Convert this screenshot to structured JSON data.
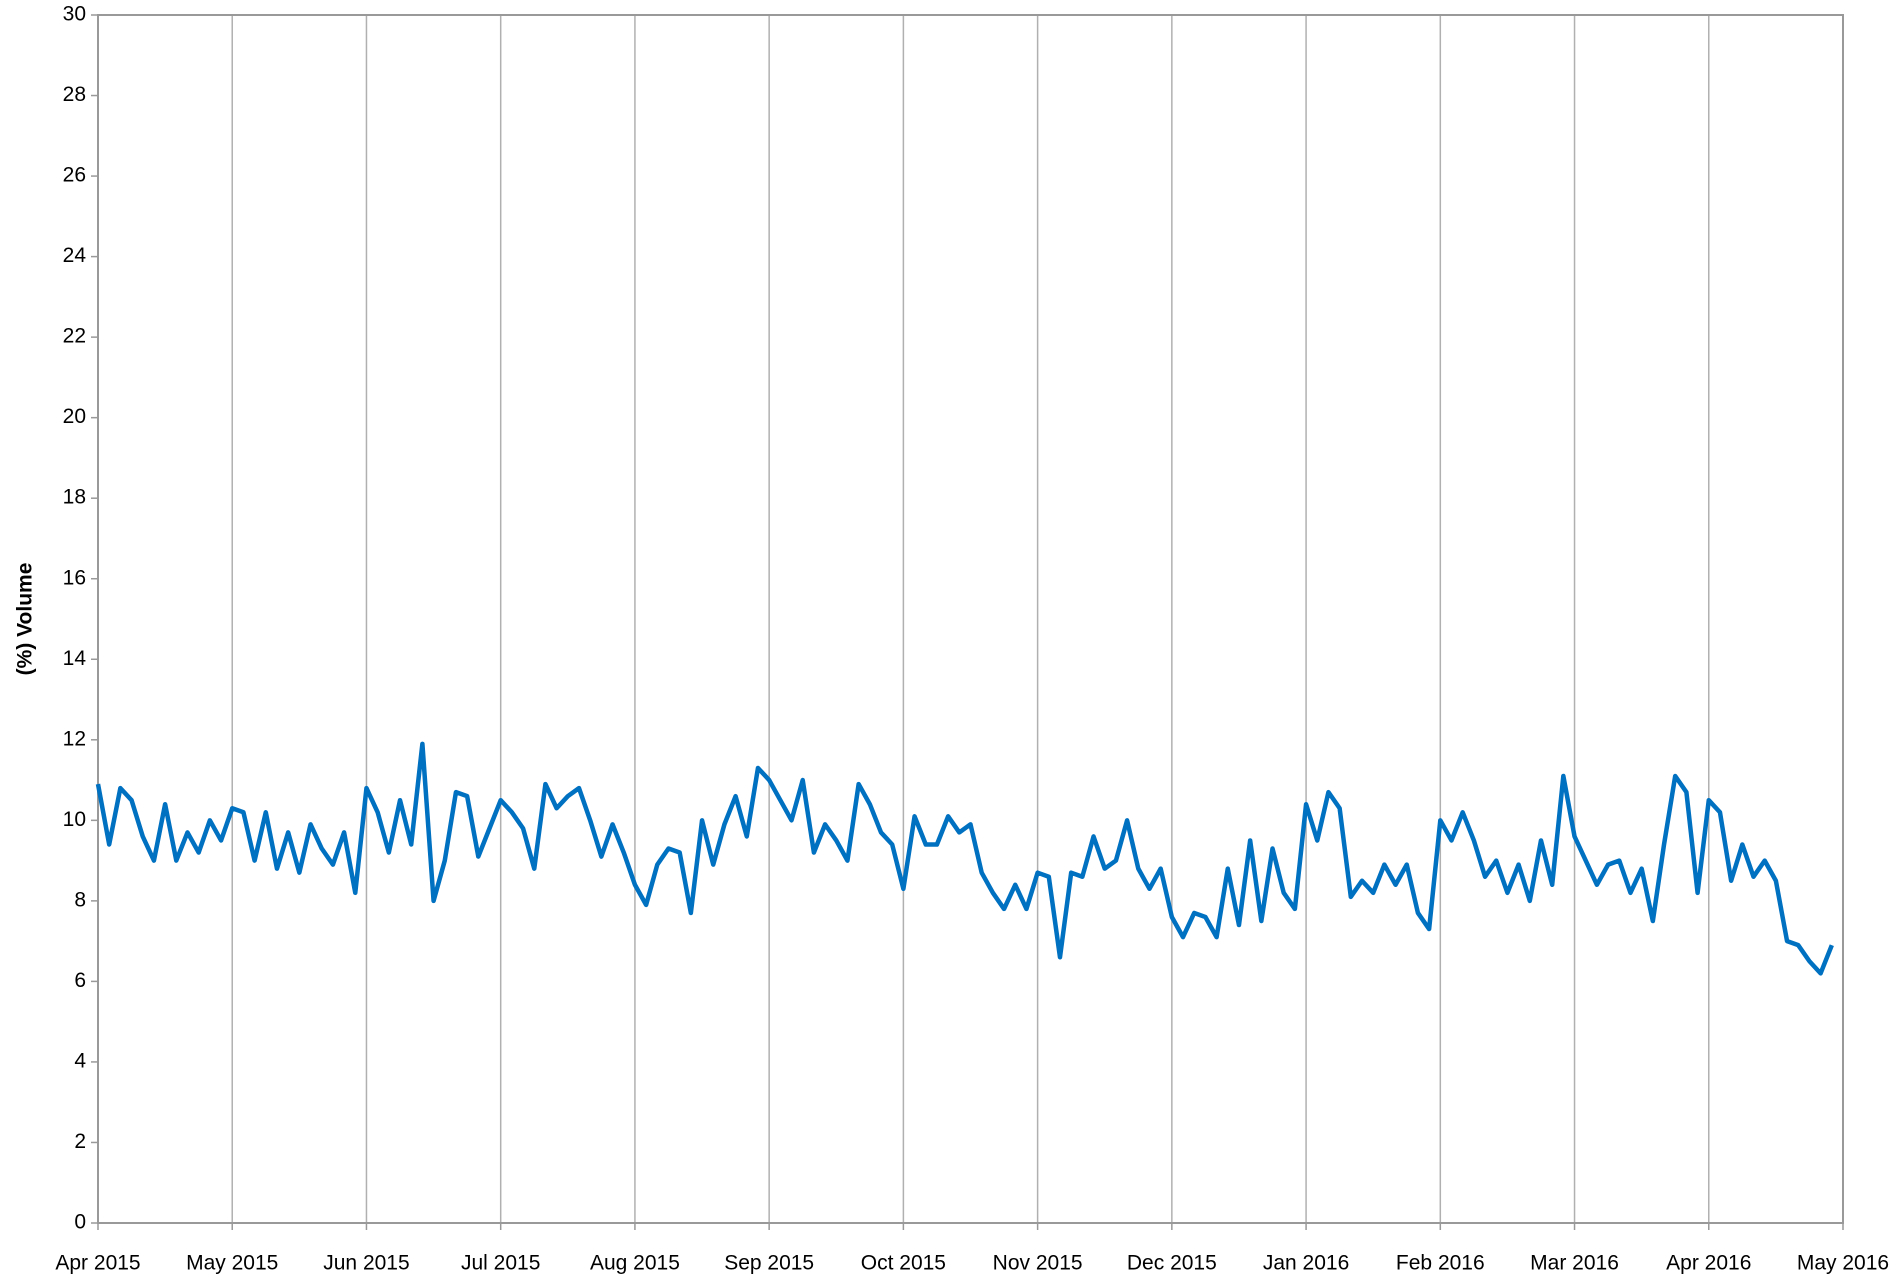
{
  "chart_data": {
    "type": "line",
    "y_label": "(%) Volume",
    "categories": [
      "Apr 2015",
      null,
      null,
      null,
      null,
      null,
      null,
      null,
      null,
      null,
      null,
      null,
      "May 2015",
      null,
      null,
      null,
      null,
      null,
      null,
      null,
      null,
      null,
      null,
      null,
      "Jun 2015",
      null,
      null,
      null,
      null,
      null,
      null,
      null,
      null,
      null,
      null,
      null,
      "Jul 2015",
      null,
      null,
      null,
      null,
      null,
      null,
      null,
      null,
      null,
      null,
      null,
      "Aug 2015",
      null,
      null,
      null,
      null,
      null,
      null,
      null,
      null,
      null,
      null,
      null,
      "Sep 2015",
      null,
      null,
      null,
      null,
      null,
      null,
      null,
      null,
      null,
      null,
      null,
      "Oct 2015",
      null,
      null,
      null,
      null,
      null,
      null,
      null,
      null,
      null,
      null,
      null,
      "Nov 2015",
      null,
      null,
      null,
      null,
      null,
      null,
      null,
      null,
      null,
      null,
      null,
      "Dec 2015",
      null,
      null,
      null,
      null,
      null,
      null,
      null,
      null,
      null,
      null,
      null,
      "Jan 2016",
      null,
      null,
      null,
      null,
      null,
      null,
      null,
      null,
      null,
      null,
      null,
      "Feb 2016",
      null,
      null,
      null,
      null,
      null,
      null,
      null,
      null,
      null,
      null,
      null,
      "Mar 2016",
      null,
      null,
      null,
      null,
      null,
      null,
      null,
      null,
      null,
      null,
      null,
      "Apr 2016",
      null,
      null,
      null,
      null,
      null,
      null,
      null,
      null,
      null,
      null,
      null,
      "May 2016"
    ],
    "series": [
      {
        "color": "#0070c0",
        "values": [
          10.9,
          9.4,
          10.8,
          10.5,
          9.6,
          9.0,
          10.4,
          9.0,
          9.7,
          9.2,
          10.0,
          9.5,
          10.3,
          10.2,
          9.0,
          10.2,
          8.8,
          9.7,
          8.7,
          9.9,
          9.3,
          8.9,
          9.7,
          8.2,
          10.8,
          10.2,
          9.2,
          10.5,
          9.4,
          11.9,
          8.0,
          9.0,
          10.7,
          10.6,
          9.1,
          9.8,
          10.5,
          10.2,
          9.8,
          8.8,
          10.9,
          10.3,
          10.6,
          10.8,
          10.0,
          9.1,
          9.9,
          9.2,
          8.4,
          7.9,
          8.9,
          9.3,
          9.2,
          7.7,
          10.0,
          8.9,
          9.9,
          10.6,
          9.6,
          11.3,
          11.0,
          10.5,
          10.0,
          11.0,
          9.2,
          9.9,
          9.5,
          9.0,
          10.9,
          10.4,
          9.7,
          9.4,
          8.3,
          10.1,
          9.4,
          9.4,
          10.1,
          9.7,
          9.9,
          8.7,
          8.2,
          7.8,
          8.4,
          7.8,
          8.7,
          8.6,
          6.6,
          8.7,
          8.6,
          9.6,
          8.8,
          9.0,
          10.0,
          8.8,
          8.3,
          8.8,
          7.6,
          7.1,
          7.7,
          7.6,
          7.1,
          8.8,
          7.4,
          9.5,
          7.5,
          9.3,
          8.2,
          7.8,
          10.4,
          9.5,
          10.7,
          10.3,
          8.1,
          8.5,
          8.2,
          8.9,
          8.4,
          8.9,
          7.7,
          7.3,
          10.0,
          9.5,
          10.2,
          9.5,
          8.6,
          9.0,
          8.2,
          8.9,
          8.0,
          9.5,
          8.4,
          11.1,
          9.6,
          9.0,
          8.4,
          8.9,
          9.0,
          8.2,
          8.8,
          7.5,
          9.4,
          11.1,
          10.7,
          8.2,
          10.5,
          10.2,
          8.5,
          9.4,
          8.6,
          9.0,
          8.5,
          7.0,
          6.9,
          6.5,
          6.2,
          6.9,
          null
        ]
      }
    ],
    "ylim": [
      0,
      30
    ],
    "yticks": [
      0,
      2,
      4,
      6,
      8,
      10,
      12,
      14,
      16,
      18,
      20,
      22,
      24,
      26,
      28,
      30
    ],
    "grid": "x"
  }
}
